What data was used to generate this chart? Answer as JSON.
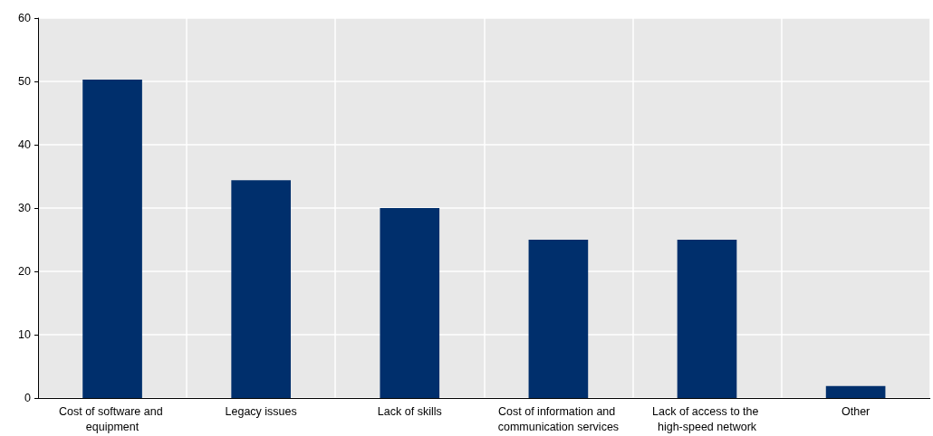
{
  "chart_data": {
    "type": "bar",
    "categories": [
      "Cost of software and equipment",
      "Legacy issues",
      "Lack of skills",
      "Cost of information and communication services",
      "Lack of access to the high-speed network",
      "Other"
    ],
    "values": [
      50.3,
      34.4,
      30,
      25,
      25,
      1.9
    ],
    "color": "#002f6c",
    "ylim": [
      0,
      60
    ],
    "yticks": [
      0,
      10,
      20,
      30,
      40,
      50,
      60
    ],
    "grid": true
  }
}
